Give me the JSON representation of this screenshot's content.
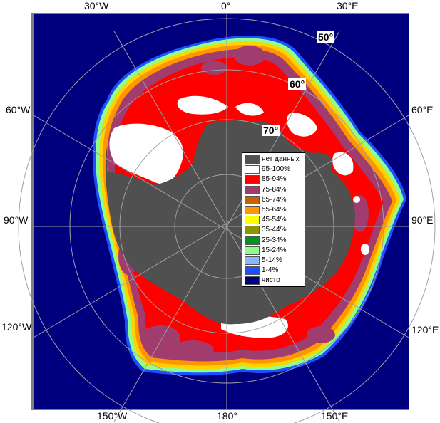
{
  "map": {
    "colors": {
      "no_data": "#505050",
      "land_frame": "#7f7f7f",
      "open_water": "#00007f",
      "grid": "#a0a0a0"
    },
    "longitude_labels": {
      "top_left": "30°W",
      "top_center": "0°",
      "top_right": "30°E",
      "left_upper": "60°W",
      "right_upper": "60°E",
      "left_middle": "90°W",
      "right_middle": "90°E",
      "left_lower": "120°W",
      "right_lower": "120°E",
      "bottom_left": "150°W",
      "bottom_center": "180°",
      "bottom_right": "150°E"
    },
    "latitude_labels": [
      "50°",
      "60°",
      "70°"
    ]
  },
  "legend": {
    "items": [
      {
        "label": "нет данных",
        "color": "#505050"
      },
      {
        "label": "95-100%",
        "color": "#ffffff"
      },
      {
        "label": "85-94%",
        "color": "#ff0000"
      },
      {
        "label": "75-84%",
        "color": "#a03c6e"
      },
      {
        "label": "65-74%",
        "color": "#c86400"
      },
      {
        "label": "55-64%",
        "color": "#ff9600"
      },
      {
        "label": "45-54%",
        "color": "#ffff00"
      },
      {
        "label": "35-44%",
        "color": "#8c9600"
      },
      {
        "label": "25-34%",
        "color": "#00961e"
      },
      {
        "label": "15-24%",
        "color": "#8cff8c"
      },
      {
        "label": "5-14%",
        "color": "#8cb4ff"
      },
      {
        "label": "1-4%",
        "color": "#1e50ff"
      },
      {
        "label": "чисто",
        "color": "#00007f"
      }
    ]
  }
}
